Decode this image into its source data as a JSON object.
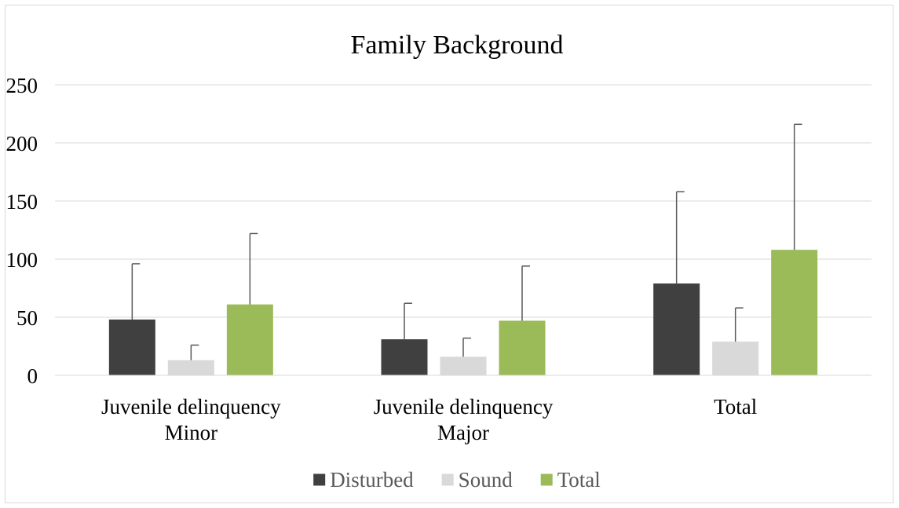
{
  "chart_data": {
    "type": "bar",
    "title": "Family Background",
    "xlabel": "",
    "ylabel": "",
    "ylim": [
      0,
      250
    ],
    "yticks": [
      0,
      50,
      100,
      150,
      200,
      250
    ],
    "grid": true,
    "legend_position": "bottom",
    "categories": [
      [
        "Juvenile delinquency",
        "Minor"
      ],
      [
        "Juvenile delinquency",
        "Major"
      ],
      [
        "Total"
      ]
    ],
    "series": [
      {
        "name": "Disturbed",
        "color": "#404040",
        "values": [
          48,
          31,
          79
        ],
        "error_upper": [
          96,
          62,
          158
        ]
      },
      {
        "name": "Sound",
        "color": "#d9d9d9",
        "values": [
          13,
          16,
          29
        ],
        "error_upper": [
          26,
          32,
          58
        ]
      },
      {
        "name": "Total",
        "color": "#9bbb59",
        "values": [
          61,
          47,
          108
        ],
        "error_upper": [
          122,
          94,
          216
        ]
      }
    ]
  }
}
